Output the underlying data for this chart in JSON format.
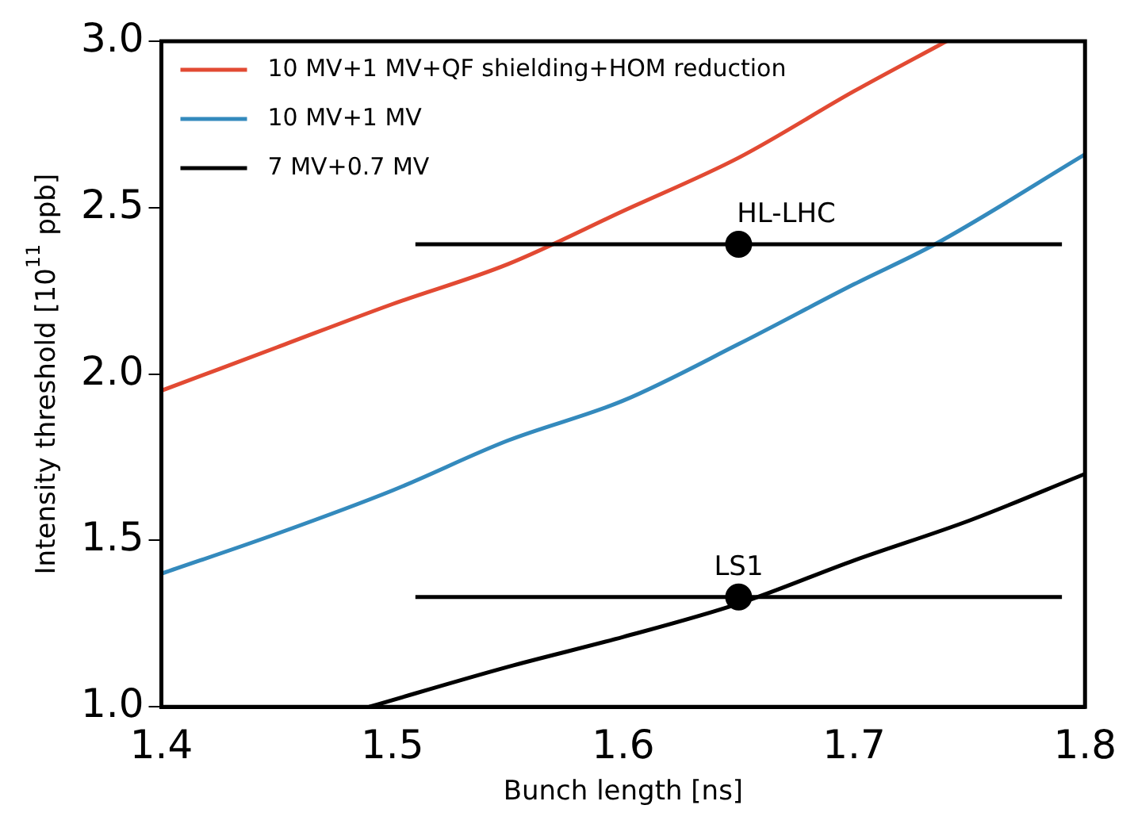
{
  "chart_data": {
    "type": "line",
    "xlabel": "Bunch length [ns]",
    "ylabel": "Intensity threshold [10$^{11}$ ppb]",
    "xlim": [
      1.4,
      1.8
    ],
    "xticks": [
      1.4,
      1.5,
      1.6,
      1.7,
      1.8
    ],
    "ylim": [
      1.0,
      3.0
    ],
    "yticks": [
      {
        "value": 1,
        "label": "1.0"
      },
      1.5,
      {
        "value": 2,
        "label": "2.0"
      },
      2.5,
      {
        "value": 3,
        "label": "3.0"
      }
    ],
    "grid": false,
    "legend": "top left",
    "marker": "none",
    "line_style": "solid",
    "series": [
      {
        "name": "10 MV+1 MV+QF shielding+HOM reduction",
        "color": "#e24a33",
        "x": [
          1.4,
          1.45,
          1.5,
          1.55,
          1.6,
          1.65,
          1.7,
          1.74
        ],
        "values": [
          1.95,
          2.08,
          2.21,
          2.33,
          2.49,
          2.65,
          2.85,
          3.0
        ]
      },
      {
        "name": "10 MV+1 MV",
        "color": "#348abd",
        "x": [
          1.4,
          1.45,
          1.5,
          1.55,
          1.6,
          1.65,
          1.7,
          1.735,
          1.8
        ],
        "values": [
          1.4,
          1.52,
          1.65,
          1.8,
          1.92,
          2.09,
          2.27,
          2.39,
          2.66
        ]
      },
      {
        "name": "7 MV+0.7 MV",
        "color": "#000000",
        "x": [
          1.49,
          1.55,
          1.6,
          1.65,
          1.7,
          1.75,
          1.8
        ],
        "values": [
          1.0,
          1.12,
          1.21,
          1.31,
          1.44,
          1.56,
          1.7
        ]
      },
      {
        "type": "scatter",
        "color": "#000000",
        "marker": "circle",
        "x": [
          1.65,
          1.65
        ],
        "values": [
          2.39,
          1.33
        ],
        "xerrors": [
          [
            1.51,
            1.79
          ],
          [
            1.51,
            1.79
          ]
        ]
      }
    ],
    "annotations": [
      {
        "text": "HL-LHC",
        "x": 1.65,
        "y": 2.39
      },
      {
        "text": "LS1",
        "x": 1.65,
        "y": 1.33
      }
    ]
  }
}
